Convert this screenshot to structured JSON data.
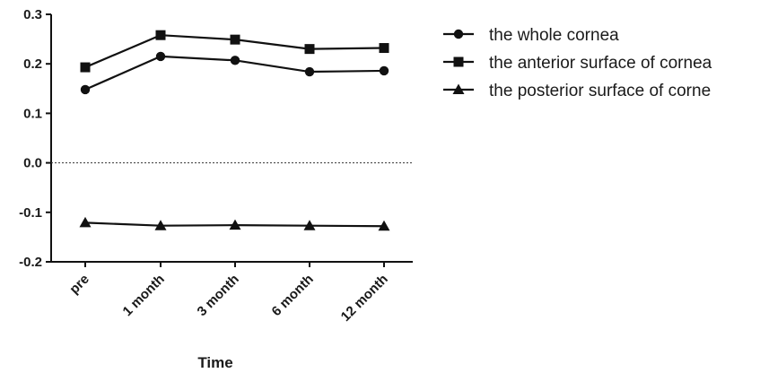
{
  "chart_data": {
    "type": "line",
    "title": "",
    "xlabel": "Time",
    "ylabel": "",
    "categories": [
      "pre",
      "1 month",
      "3 month",
      "6 month",
      "12 month"
    ],
    "ylim": [
      -0.2,
      0.3
    ],
    "yticks": [
      "0.3",
      "0.2",
      "0.1",
      "0.0",
      "-0.1",
      "-0.2"
    ],
    "reference_line": {
      "y": 0.0,
      "style": "dotted"
    },
    "legend_position": "top-right",
    "series": [
      {
        "name": "the whole cornea",
        "marker": "circle",
        "values": [
          0.148,
          0.215,
          0.207,
          0.184,
          0.186
        ]
      },
      {
        "name": "the anterior surface of cornea",
        "marker": "square",
        "values": [
          0.193,
          0.258,
          0.249,
          0.23,
          0.232
        ]
      },
      {
        "name": "the posterior surface of corne",
        "marker": "triangle",
        "values": [
          -0.121,
          -0.127,
          -0.126,
          -0.127,
          -0.128
        ]
      }
    ]
  }
}
